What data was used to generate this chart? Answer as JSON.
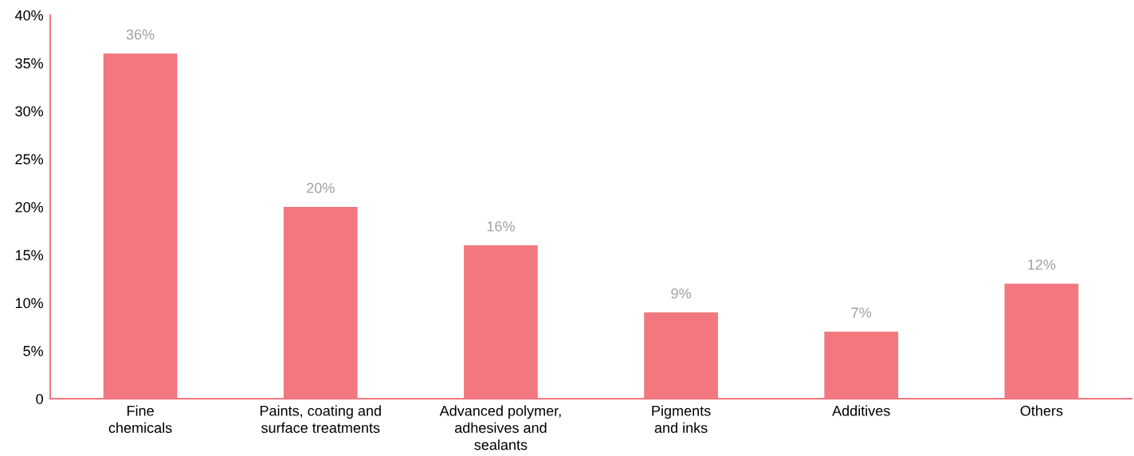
{
  "chart_data": {
    "type": "bar",
    "categories": [
      "Fine\nchemicals",
      "Paints, coating and\nsurface treatments",
      "Advanced polymer,\nadhesives and\nsealants",
      "Pigments\nand inks",
      "Additives",
      "Others"
    ],
    "values": [
      36,
      20,
      16,
      9,
      7,
      12
    ],
    "value_labels": [
      "36%",
      "20%",
      "16%",
      "9%",
      "7%",
      "12%"
    ],
    "color": "#f2777e",
    "ylim": [
      0,
      40
    ],
    "yticks": [
      {
        "value": 0,
        "label": "0"
      },
      {
        "value": 5,
        "label": "5%"
      },
      {
        "value": 10,
        "label": "10%"
      },
      {
        "value": 15,
        "label": "15%"
      },
      {
        "value": 20,
        "label": "20%"
      },
      {
        "value": 25,
        "label": "25%"
      },
      {
        "value": 30,
        "label": "30%"
      },
      {
        "value": 35,
        "label": "35%"
      },
      {
        "value": 40,
        "label": "40%"
      }
    ],
    "grid": false
  }
}
